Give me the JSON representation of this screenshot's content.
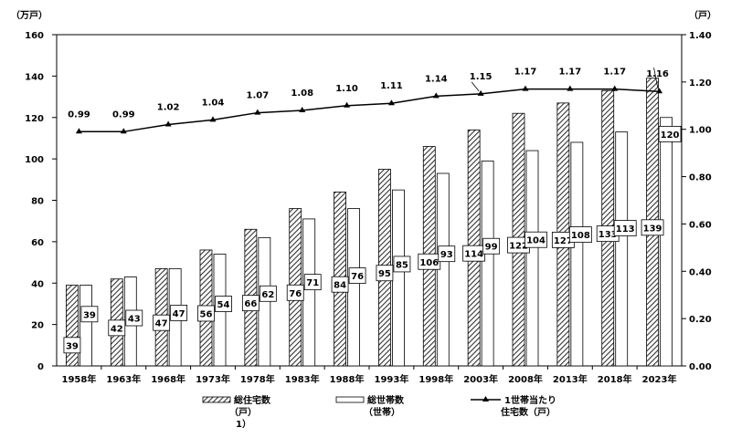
{
  "chart_data": {
    "type": "bar",
    "categories": [
      "1958年",
      "1963年",
      "1968年",
      "1973年",
      "1978年",
      "1983年",
      "1988年",
      "1993年",
      "1998年",
      "2003年",
      "2008年",
      "2013年",
      "2018年",
      "2023年"
    ],
    "series": [
      {
        "name": "総住宅数",
        "type": "bar",
        "axis": "left",
        "pattern": "hatched",
        "values": [
          39,
          42,
          47,
          56,
          66,
          76,
          84,
          95,
          106,
          114,
          122,
          127,
          133,
          139
        ]
      },
      {
        "name": "総世帯数",
        "type": "bar",
        "axis": "left",
        "pattern": "white",
        "values": [
          39,
          43,
          47,
          54,
          62,
          71,
          76,
          85,
          93,
          99,
          104,
          108,
          113,
          120
        ]
      },
      {
        "name": "1世帯当たり住宅数",
        "type": "line",
        "axis": "right",
        "marker": "triangle",
        "values": [
          0.99,
          0.99,
          1.02,
          1.04,
          1.07,
          1.08,
          1.1,
          1.11,
          1.14,
          1.15,
          1.17,
          1.17,
          1.17,
          1.16
        ]
      }
    ],
    "value_labels": {
      "houses": [
        "39",
        "42",
        "47",
        "56",
        "66",
        "76",
        "84",
        "95",
        "106",
        "114",
        "122",
        "127",
        "133",
        "139"
      ],
      "households": [
        "39",
        "43",
        "47",
        "54",
        "62",
        "71",
        "76",
        "85",
        "93",
        "99",
        "104",
        "108",
        "113",
        "120"
      ],
      "ratio": [
        "0.99",
        "0.99",
        "1.02",
        "1.04",
        "1.07",
        "1.08",
        "1.10",
        "1.11",
        "1.14",
        "1.15",
        "1.17",
        "1.17",
        "1.17",
        "1.16"
      ]
    },
    "ylim_left": [
      0,
      160
    ],
    "ylim_right": [
      0,
      1.4
    ],
    "yticks_left": [
      "0",
      "20",
      "40",
      "60",
      "80",
      "100",
      "120",
      "140",
      "160"
    ],
    "yticks_right": [
      "0.00",
      "0.20",
      "0.40",
      "0.60",
      "0.80",
      "1.00",
      "1.20",
      "1.40"
    ],
    "ylabel_left": "（万戸）",
    "ylabel_right": "（戸）",
    "grid": false,
    "legend_position": "bottom",
    "legend": [
      {
        "label": "総住宅数",
        "sub": "（戸）",
        "note": "1）"
      },
      {
        "label": "総世帯数",
        "sub": "（世帯）"
      },
      {
        "label": "1世帯当たり",
        "sub": "住宅数（戸）"
      }
    ]
  }
}
